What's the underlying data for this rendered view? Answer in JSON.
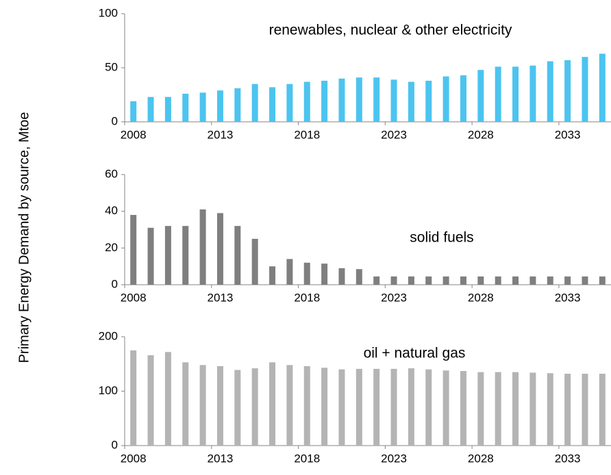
{
  "ylabel": "Primary Energy Demand by source, Mtoe",
  "chart_data": [
    {
      "type": "bar",
      "title": "renewables, nuclear & other electricity",
      "color": "#4cc4ef",
      "categories": [
        "2008",
        null,
        null,
        null,
        null,
        "2013",
        null,
        null,
        null,
        null,
        "2018",
        null,
        null,
        null,
        null,
        "2023",
        null,
        null,
        null,
        null,
        "2028",
        null,
        null,
        null,
        null,
        "2033",
        null,
        null
      ],
      "values": [
        19,
        23,
        23,
        26,
        27,
        29,
        31,
        35,
        32,
        35,
        37,
        38,
        40,
        41,
        41,
        39,
        37,
        38,
        42,
        43,
        48,
        51,
        51,
        52,
        56,
        57,
        60,
        63
      ],
      "ylim": [
        0,
        100
      ],
      "yticks": [
        0,
        50,
        100
      ]
    },
    {
      "type": "bar",
      "title": "solid fuels",
      "color": "#7f7f7f",
      "categories": [
        "2008",
        null,
        null,
        null,
        null,
        "2013",
        null,
        null,
        null,
        null,
        "2018",
        null,
        null,
        null,
        null,
        "2023",
        null,
        null,
        null,
        null,
        "2028",
        null,
        null,
        null,
        null,
        "2033",
        null,
        null
      ],
      "values": [
        38,
        31,
        32,
        32,
        41,
        39,
        32,
        25,
        10,
        14,
        12,
        11.5,
        9,
        8.5,
        4.5,
        4.5,
        4.5,
        4.5,
        4.5,
        4.5,
        4.5,
        4.5,
        4.5,
        4.5,
        4.5,
        4.5,
        4.5,
        4.5
      ],
      "ylim": [
        0,
        60
      ],
      "yticks": [
        0,
        20,
        40,
        60
      ]
    },
    {
      "type": "bar",
      "title": "oil + natural gas",
      "color": "#b4b4b4",
      "categories": [
        "2008",
        null,
        null,
        null,
        null,
        "2013",
        null,
        null,
        null,
        null,
        "2018",
        null,
        null,
        null,
        null,
        "2023",
        null,
        null,
        null,
        null,
        "2028",
        null,
        null,
        null,
        null,
        "2033",
        null,
        null
      ],
      "values": [
        175,
        166,
        172,
        153,
        148,
        146,
        139,
        142,
        153,
        148,
        146,
        143,
        140,
        141,
        141,
        141,
        142,
        140,
        138,
        137,
        135,
        135,
        135,
        134,
        133,
        132,
        132,
        132
      ],
      "ylim": [
        0,
        200
      ],
      "yticks": [
        0,
        100,
        200
      ]
    }
  ]
}
